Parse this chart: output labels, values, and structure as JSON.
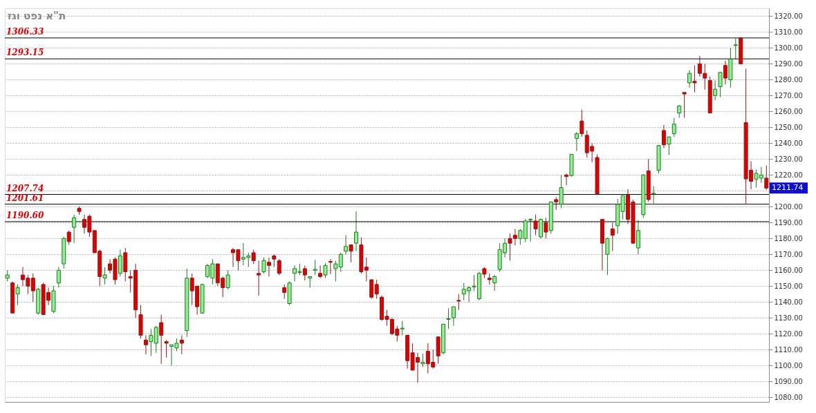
{
  "chart_data": {
    "type": "candlestick",
    "title": "ת\"א נפט וגז",
    "categories": [
      null,
      null,
      null,
      null,
      null,
      null,
      null,
      null,
      null,
      null,
      null,
      null,
      null,
      null,
      null,
      null,
      null,
      null,
      null,
      null,
      null,
      null,
      null,
      null,
      null,
      null,
      null,
      null,
      null,
      null,
      null,
      null,
      null,
      null,
      null,
      null,
      null,
      null,
      null,
      null,
      null,
      null,
      null,
      null,
      null,
      null,
      null,
      null,
      null,
      null,
      null,
      null,
      null,
      null,
      null,
      null,
      null,
      null,
      null,
      null,
      null,
      null,
      null,
      null,
      null,
      null,
      null,
      null,
      null,
      null,
      null,
      null,
      null,
      null,
      null,
      null,
      null,
      null,
      null,
      null,
      null,
      null,
      null,
      null,
      null,
      null,
      null,
      null,
      null,
      null,
      null,
      null,
      null,
      null,
      null,
      null,
      null,
      null,
      null,
      null,
      null,
      null,
      null,
      null,
      null,
      null,
      null,
      null,
      null,
      null,
      null,
      null,
      null,
      null,
      null,
      null,
      null,
      null,
      null,
      null,
      null,
      null,
      null,
      null,
      null,
      null,
      null,
      null,
      null,
      null,
      null,
      null,
      null,
      null,
      null,
      null,
      null,
      null,
      null,
      null,
      null,
      null,
      null,
      null,
      null,
      null,
      null,
      null,
      null
    ],
    "ohlc": [
      [
        1155,
        1160,
        1153,
        1157
      ],
      [
        1152,
        1153,
        1133,
        1133
      ],
      [
        1145,
        1151,
        1138,
        1149
      ],
      [
        1157,
        1162,
        1150,
        1154
      ],
      [
        1155,
        1157,
        1145,
        1150
      ],
      [
        1155,
        1158,
        1140,
        1147
      ],
      [
        1133,
        1149,
        1132,
        1148
      ],
      [
        1151,
        1152,
        1132,
        1132
      ],
      [
        1146,
        1149,
        1138,
        1141
      ],
      [
        1134,
        1150,
        1133,
        1147
      ],
      [
        1152,
        1162,
        1149,
        1160
      ],
      [
        1164,
        1181,
        1161,
        1180
      ],
      [
        1184,
        1185,
        1176,
        1178
      ],
      [
        1187,
        1195,
        1177,
        1193
      ],
      [
        1199,
        1200,
        1195,
        1197
      ],
      [
        1192,
        1195,
        1183,
        1187
      ],
      [
        1194,
        1195,
        1181,
        1184
      ],
      [
        1185,
        1185,
        1171,
        1171
      ],
      [
        1172,
        1173,
        1150,
        1156
      ],
      [
        1155,
        1162,
        1151,
        1157
      ],
      [
        1164,
        1167,
        1158,
        1160
      ],
      [
        1167,
        1168,
        1151,
        1154
      ],
      [
        1158,
        1173,
        1156,
        1169
      ],
      [
        1171,
        1174,
        1153,
        1159
      ],
      [
        1156,
        1160,
        1146,
        1155
      ],
      [
        1160,
        1164,
        1130,
        1135
      ],
      [
        1132,
        1138,
        1117,
        1119
      ],
      [
        1116,
        1119,
        1107,
        1113
      ],
      [
        1115,
        1123,
        1106,
        1119
      ],
      [
        1114,
        1125,
        1108,
        1124
      ],
      [
        1127,
        1132,
        1101,
        1119
      ],
      [
        1115,
        1116,
        1105,
        1114
      ],
      [
        1112,
        1113,
        1100,
        1113
      ],
      [
        1111,
        1117,
        1109,
        1114
      ],
      [
        1116,
        1119,
        1107,
        1114
      ],
      [
        1122,
        1161,
        1118,
        1155
      ],
      [
        1155,
        1158,
        1138,
        1147
      ],
      [
        1150,
        1150,
        1132,
        1137
      ],
      [
        1133,
        1151.5,
        1133,
        1151
      ],
      [
        1156,
        1164,
        1155,
        1163
      ],
      [
        1155,
        1167,
        1151,
        1164
      ],
      [
        1164,
        1164,
        1150,
        1152
      ],
      [
        1155,
        1156,
        1143,
        1149
      ],
      [
        1149,
        1160,
        1148,
        1157
      ],
      [
        1173,
        1174,
        1162,
        1171
      ],
      [
        1173,
        1173,
        1160,
        1166
      ],
      [
        1167,
        1177,
        1163,
        1168
      ],
      [
        1168,
        1171,
        1162,
        1169
      ],
      [
        1171,
        1173,
        1164,
        1166
      ],
      [
        1158,
        1166,
        1144,
        1157
      ],
      [
        1159,
        1168,
        1158,
        1166
      ],
      [
        1165,
        1168,
        1156,
        1163
      ],
      [
        1169,
        1170,
        1162,
        1167
      ],
      [
        1166,
        1167,
        1157,
        1158
      ],
      [
        1149,
        1151,
        1142,
        1146
      ],
      [
        1139,
        1153,
        1138,
        1152
      ],
      [
        1158,
        1163,
        1153,
        1161
      ],
      [
        1158.6,
        1164,
        1157,
        1159
      ],
      [
        1161,
        1163,
        1153.6,
        1157
      ],
      [
        1155,
        1156,
        1149,
        1156
      ],
      [
        1160,
        1166.5,
        1157,
        1160.5
      ],
      [
        1158,
        1163,
        1155,
        1156
      ],
      [
        1157,
        1164.4,
        1155,
        1163
      ],
      [
        1165.5,
        1167,
        1157.5,
        1165
      ],
      [
        1161,
        1166,
        1153,
        1164
      ],
      [
        1162,
        1171,
        1159,
        1170
      ],
      [
        1172,
        1182,
        1170,
        1175
      ],
      [
        1176,
        1176,
        1165,
        1172
      ],
      [
        1177,
        1197,
        1172,
        1184
      ],
      [
        1176,
        1180.7,
        1158,
        1159
      ],
      [
        1162,
        1168,
        1153,
        1160
      ],
      [
        1154,
        1154,
        1142,
        1143
      ],
      [
        1151,
        1154,
        1142,
        1145
      ],
      [
        1143,
        1144,
        1128,
        1129
      ],
      [
        1131,
        1135,
        1125,
        1129
      ],
      [
        1129,
        1130,
        1119,
        1120
      ],
      [
        1123,
        1125,
        1115,
        1119
      ],
      [
        1123,
        1128,
        1119,
        1123.5
      ],
      [
        1119,
        1119,
        1098,
        1103
      ],
      [
        1108,
        1114,
        1097,
        1097
      ],
      [
        1105,
        1108,
        1089,
        1102
      ],
      [
        1101,
        1107.5,
        1099,
        1102
      ],
      [
        1109,
        1114,
        1095,
        1101
      ],
      [
        1102,
        1110,
        1098,
        1099
      ],
      [
        1118,
        1118,
        1101,
        1106
      ],
      [
        1108,
        1126,
        1107,
        1126
      ],
      [
        1129,
        1136,
        1123,
        1129.5
      ],
      [
        1130,
        1137,
        1125,
        1137
      ],
      [
        1141,
        1145,
        1135,
        1140.5
      ],
      [
        1145,
        1152,
        1141,
        1148
      ],
      [
        1147,
        1150,
        1140,
        1149
      ],
      [
        1149.5,
        1157,
        1147,
        1150
      ],
      [
        1142,
        1159,
        1141,
        1158
      ],
      [
        1161,
        1162,
        1155,
        1157.5
      ],
      [
        1155,
        1158,
        1151,
        1154
      ],
      [
        1152,
        1157,
        1147,
        1156
      ],
      [
        1160.5,
        1177,
        1159,
        1173
      ],
      [
        1171,
        1180,
        1168,
        1177
      ],
      [
        1180,
        1183,
        1166,
        1177
      ],
      [
        1182,
        1186,
        1175.6,
        1180
      ],
      [
        1180,
        1186,
        1176,
        1185
      ],
      [
        1180,
        1192.4,
        1177.7,
        1191
      ],
      [
        1191.5,
        1192.8,
        1178,
        1192
      ],
      [
        1191,
        1195,
        1182,
        1186
      ],
      [
        1181,
        1192.5,
        1180,
        1192
      ],
      [
        1190,
        1193,
        1180,
        1184
      ],
      [
        1185,
        1203,
        1183,
        1203
      ],
      [
        1204.5,
        1206,
        1198,
        1203
      ],
      [
        1201.5,
        1220,
        1199,
        1212
      ],
      [
        1220,
        1221,
        1213.5,
        1219
      ],
      [
        1219.6,
        1233,
        1219,
        1233
      ],
      [
        1243,
        1247,
        1235,
        1246
      ],
      [
        1254,
        1261,
        1244,
        1246
      ],
      [
        1245,
        1248,
        1231,
        1234
      ],
      [
        1238,
        1240,
        1228,
        1235
      ],
      [
        1231,
        1233,
        1207.7,
        1208
      ],
      [
        1192,
        1192,
        1160,
        1177
      ],
      [
        1170,
        1180.5,
        1157,
        1180
      ],
      [
        1186,
        1190,
        1172,
        1182
      ],
      [
        1188,
        1205,
        1183,
        1201.5
      ],
      [
        1197,
        1207,
        1192,
        1207
      ],
      [
        1207.5,
        1211,
        1189,
        1192
      ],
      [
        1203,
        1204.5,
        1177,
        1177
      ],
      [
        1174,
        1191.5,
        1170,
        1185
      ],
      [
        1195,
        1220.5,
        1193,
        1220
      ],
      [
        1222.6,
        1230,
        1203,
        1204.5
      ],
      [
        1208,
        1213,
        1202,
        1208.5
      ],
      [
        1223,
        1239,
        1221,
        1238.5
      ],
      [
        1248,
        1251.5,
        1237,
        1239
      ],
      [
        1239.5,
        1244,
        1232.5,
        1244
      ],
      [
        1246,
        1256,
        1244,
        1252
      ],
      [
        1259,
        1264,
        1256,
        1263.5
      ],
      [
        1272,
        1272,
        1256,
        1271
      ],
      [
        1278,
        1286,
        1275,
        1284
      ],
      [
        1279,
        1289,
        1272,
        1278
      ],
      [
        1290,
        1295,
        1282,
        1284
      ],
      [
        1284,
        1290,
        1273.7,
        1281
      ],
      [
        1279.5,
        1282,
        1259,
        1259
      ],
      [
        1270,
        1279.5,
        1267,
        1274
      ],
      [
        1275.6,
        1285,
        1269,
        1284.6
      ],
      [
        1289,
        1292,
        1277,
        1281
      ],
      [
        1280,
        1300,
        1275,
        1293
      ],
      [
        1301.5,
        1306,
        1293,
        1302
      ],
      [
        1306.3,
        1306.3,
        1290,
        1290
      ],
      [
        1253,
        1287,
        1201.6,
        1217.5
      ],
      [
        1223,
        1228.6,
        1211,
        1216
      ],
      [
        1217.4,
        1223.5,
        1212,
        1221
      ],
      [
        1218,
        1225,
        1215,
        1220
      ],
      [
        1218,
        1226,
        1210.6,
        1211.74
      ]
    ],
    "ylim": [
      1077,
      1325
    ],
    "yticks": [
      {
        "value": 1080,
        "label": "1080.00"
      },
      {
        "value": 1090,
        "label": "1090.00"
      },
      {
        "value": 1100,
        "label": "1100.00"
      },
      {
        "value": 1110,
        "label": "1110.00"
      },
      {
        "value": 1120,
        "label": "1120.00"
      },
      {
        "value": 1130,
        "label": "1130.00"
      },
      {
        "value": 1140,
        "label": "1140.00"
      },
      {
        "value": 1150,
        "label": "1150.00"
      },
      {
        "value": 1160,
        "label": "1160.00"
      },
      {
        "value": 1170,
        "label": "1170.00"
      },
      {
        "value": 1180,
        "label": "1180.00"
      },
      {
        "value": 1190,
        "label": "1190.00"
      },
      {
        "value": 1200,
        "label": "1200.00"
      },
      {
        "value": 1210,
        "label": null
      },
      {
        "value": 1220,
        "label": "1220.00"
      },
      {
        "value": 1230,
        "label": "1230.00"
      },
      {
        "value": 1240,
        "label": "1240.00"
      },
      {
        "value": 1250,
        "label": "1250.00"
      },
      {
        "value": 1260,
        "label": "1260.00"
      },
      {
        "value": 1270,
        "label": "1270.00"
      },
      {
        "value": 1280,
        "label": "1280.00"
      },
      {
        "value": 1290,
        "label": "1290.00"
      },
      {
        "value": 1300,
        "label": "1300.00"
      },
      {
        "value": 1310,
        "label": "1310.00"
      },
      {
        "value": 1320,
        "label": "1320.00"
      }
    ],
    "ref_lines": [
      {
        "axis": "y",
        "value": 1306.33,
        "label": "1306.33",
        "color": "#000000"
      },
      {
        "axis": "y",
        "value": 1293.15,
        "label": "1293.15",
        "color": "#000000"
      },
      {
        "axis": "y",
        "value": 1207.74,
        "label": "1207.74",
        "color": "#000000"
      },
      {
        "axis": "y",
        "value": 1201.61,
        "label": "1201.61",
        "color": "#000000"
      },
      {
        "axis": "y",
        "value": 1190.6,
        "label": "1190.60",
        "color": "#000000"
      }
    ],
    "annotations": [
      "1211.74"
    ],
    "grid": "y",
    "tick_labels": "y"
  }
}
